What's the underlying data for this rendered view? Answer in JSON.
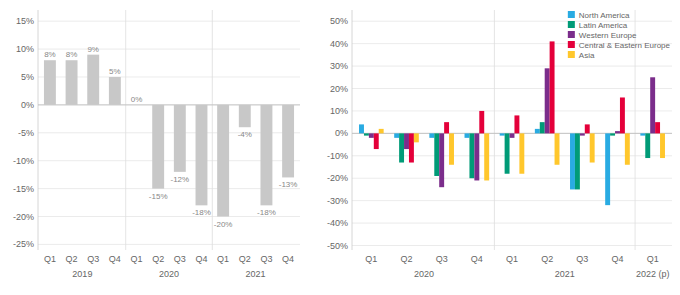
{
  "chart_data": [
    {
      "type": "bar",
      "categories": [
        "Q1",
        "Q2",
        "Q3",
        "Q4",
        "Q1",
        "Q2",
        "Q3",
        "Q4",
        "Q1",
        "Q2",
        "Q3",
        "Q4"
      ],
      "values": [
        8,
        8,
        9,
        5,
        0,
        -15,
        -12,
        -18,
        -20,
        -4,
        -18,
        -13
      ],
      "value_labels": [
        "8%",
        "8%",
        "9%",
        "5%",
        "0%",
        "-15%",
        "-12%",
        "-18%",
        "-20%",
        "-4%",
        "-18%",
        "-13%"
      ],
      "data_labels": true,
      "color": "#c8c8c8",
      "annotations": [
        "2019",
        "2020",
        "2021"
      ],
      "ylim": [
        -26,
        17
      ],
      "yticks": [
        {
          "value": -25,
          "label": "-25%"
        },
        {
          "value": -20,
          "label": "-20%"
        },
        {
          "value": -15,
          "label": "-15%"
        },
        {
          "value": -10,
          "label": "-10%"
        },
        {
          "value": -5,
          "label": "-5%"
        },
        {
          "value": 0,
          "label": "0%"
        },
        {
          "value": 5,
          "label": "5%"
        },
        {
          "value": 10,
          "label": "10%"
        },
        {
          "value": 15,
          "label": "15%"
        }
      ],
      "grid": true
    },
    {
      "type": "bar",
      "categories": [
        "Q1",
        "Q2",
        "Q3",
        "Q4",
        "Q1",
        "Q2",
        "Q3",
        "Q4",
        "Q1"
      ],
      "series": [
        {
          "name": "North America",
          "color": "#29ABE2",
          "values": [
            4,
            -2,
            -2,
            -2,
            -1,
            2,
            -25,
            -32,
            -1
          ]
        },
        {
          "name": "Latin America",
          "color": "#009B77",
          "values": [
            -1,
            -13,
            -19,
            -20,
            -18,
            5,
            -25,
            -1,
            -11
          ]
        },
        {
          "name": "Western Europe",
          "color": "#7B2D8B",
          "values": [
            -2,
            -7,
            -24,
            -21,
            -2,
            29,
            -1,
            1,
            25
          ]
        },
        {
          "name": "Central & Eastern Europe",
          "color": "#E4003A",
          "values": [
            -7,
            -13,
            5,
            10,
            8,
            41,
            4,
            16,
            5
          ]
        },
        {
          "name": "Asia",
          "color": "#FFC72C",
          "values": [
            2,
            -4,
            -14,
            -21,
            -18,
            -14,
            -13,
            -14,
            -11
          ]
        }
      ],
      "annotations": [
        "2020",
        "2021",
        "2022 (p)"
      ],
      "ylim": [
        -52,
        55
      ],
      "yticks": [
        {
          "value": -50,
          "label": "-50%"
        },
        {
          "value": -40,
          "label": "-40%"
        },
        {
          "value": -30,
          "label": "-30%"
        },
        {
          "value": -20,
          "label": "-20%"
        },
        {
          "value": -10,
          "label": "-10%"
        },
        {
          "value": 0,
          "label": "0%"
        },
        {
          "value": 10,
          "label": "10%"
        },
        {
          "value": 20,
          "label": "20%"
        },
        {
          "value": 30,
          "label": "30%"
        },
        {
          "value": 40,
          "label": "40%"
        },
        {
          "value": 50,
          "label": "50%"
        }
      ],
      "legend": "upper right",
      "grid": true
    }
  ]
}
